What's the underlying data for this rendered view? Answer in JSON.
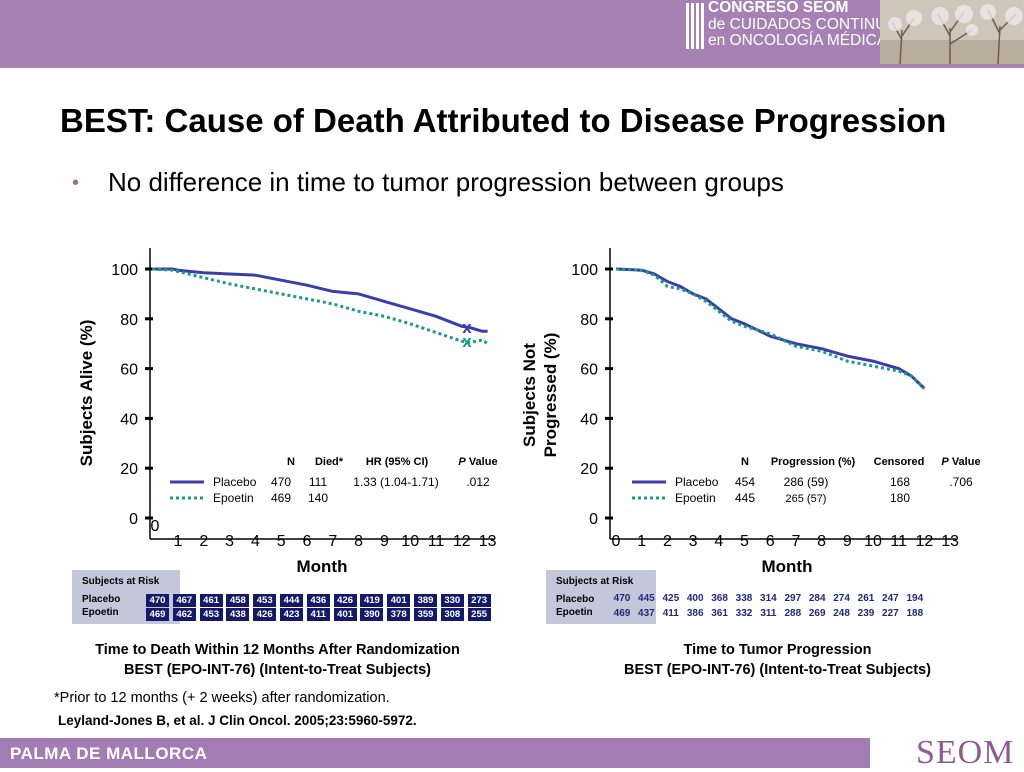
{
  "header": {
    "logo_lines": [
      "CONGRESO SEOM",
      "de CUIDADOS CONTINUOS",
      "en ONCOLOGÍA MÉDICA"
    ]
  },
  "slide": {
    "title": "BEST: Cause of Death Attributed to Disease Progression",
    "bullet": "No difference in time to tumor progression between groups",
    "footnote": "*Prior to 12 months (+ 2 weeks) after randomization.",
    "reference": "Leyland-Jones B, et al. J Clin Oncol. 2005;23:5960-5972."
  },
  "footer": {
    "left": "PALMA DE MALLORCA",
    "right": "SEOM"
  },
  "colors": {
    "placebo": "#3b3ea6",
    "epoetin": "#1b9a86",
    "banner": "#a681b4",
    "risk_box": "#c4c7da",
    "risk_cell": "#151969"
  },
  "chart_data": [
    {
      "type": "line",
      "ylabel": "Subjects Alive (%)",
      "xlabel": "Month",
      "ylim": [
        0,
        100
      ],
      "yticks": [
        "100",
        "80",
        "60",
        "40",
        "20",
        "0"
      ],
      "xticks": [
        "0",
        "1",
        "2",
        "3",
        "4",
        "5",
        "6",
        "7",
        "8",
        "9",
        "10",
        "11",
        "12",
        "13"
      ],
      "x_zero_label": "0",
      "legend_headers": [
        "N",
        "Died*",
        "HR (95% CI)",
        "P Value"
      ],
      "legend_rows": [
        {
          "name": "Placebo",
          "n": "470",
          "stat": "111",
          "hr": "1.33 (1.04-1.71)",
          "p": ".012"
        },
        {
          "name": "Epoetin",
          "n": "469",
          "stat": "140",
          "hr": "",
          "p": ""
        }
      ],
      "end_markers": [
        "x",
        "x"
      ],
      "series": [
        {
          "name": "Placebo",
          "x": [
            0,
            0.8,
            1,
            2,
            3,
            4,
            5,
            6,
            7,
            8,
            9,
            10,
            11,
            12,
            12.3,
            12.8,
            13
          ],
          "y": [
            100,
            100,
            99.5,
            98.5,
            98,
            97.5,
            95.5,
            93.5,
            91,
            90,
            87,
            84,
            81,
            77,
            76.5,
            75,
            75
          ]
        },
        {
          "name": "Epoetin",
          "x": [
            0,
            0.8,
            1,
            2,
            3,
            4,
            5,
            6,
            7,
            8,
            9,
            10,
            11,
            12,
            12.3,
            12.8,
            13
          ],
          "y": [
            100,
            99.5,
            99,
            96.5,
            94,
            92,
            90,
            88,
            86,
            83,
            81,
            78,
            74.5,
            71,
            70.5,
            71.5,
            70
          ]
        }
      ],
      "risk_table": {
        "title": "Subjects at Risk",
        "labels": [
          "Placebo",
          "Epoetin"
        ],
        "placebo": [
          "470",
          "467",
          "461",
          "458",
          "453",
          "444",
          "436",
          "426",
          "419",
          "401",
          "389",
          "330",
          "273"
        ],
        "epoetin": [
          "469",
          "462",
          "453",
          "438",
          "426",
          "423",
          "411",
          "401",
          "390",
          "378",
          "359",
          "308",
          "255"
        ]
      },
      "caption": [
        "Time to Death Within 12 Months After Randomization",
        "BEST (EPO-INT-76) (Intent-to-Treat Subjects)"
      ]
    },
    {
      "type": "line",
      "ylabel": "Subjects Not Progressed (%)",
      "ylabel_lines": [
        "Subjects Not",
        "Progressed (%)"
      ],
      "xlabel": "Month",
      "ylim": [
        0,
        100
      ],
      "yticks": [
        "100",
        "80",
        "60",
        "40",
        "20",
        "0"
      ],
      "xticks": [
        "0",
        "1",
        "2",
        "3",
        "4",
        "5",
        "6",
        "7",
        "8",
        "9",
        "10",
        "11",
        "12",
        "13"
      ],
      "legend_headers": [
        "N",
        "Progression (%)",
        "Censored",
        "P Value"
      ],
      "legend_rows": [
        {
          "name": "Placebo",
          "n": "454",
          "stat": "286 (59)",
          "censored": "168",
          "p": ".706"
        },
        {
          "name": "Epoetin",
          "n": "445",
          "stat": "265 (57)",
          "censored": "180",
          "p": ""
        }
      ],
      "series": [
        {
          "name": "Placebo",
          "x": [
            0,
            1,
            1.5,
            2,
            2.5,
            3,
            3.5,
            4,
            4.5,
            5,
            6,
            7,
            8,
            9,
            10,
            11,
            11.5,
            12
          ],
          "y": [
            100,
            99.5,
            98,
            95,
            93,
            90,
            88,
            84,
            80,
            78,
            73,
            70,
            68,
            65,
            63,
            60,
            57,
            52
          ]
        },
        {
          "name": "Epoetin",
          "x": [
            0,
            1,
            1.5,
            2,
            2.5,
            3,
            3.5,
            4,
            4.5,
            5,
            6,
            7,
            8,
            9,
            10,
            11,
            11.5,
            12
          ],
          "y": [
            100,
            99.5,
            97.5,
            93,
            92,
            90,
            87,
            83,
            79,
            77,
            74,
            69,
            67,
            63,
            61,
            59,
            57,
            52
          ]
        }
      ],
      "risk_table": {
        "title": "Subjects at Risk",
        "labels": [
          "Placebo",
          "Epoetin"
        ],
        "placebo": [
          "470",
          "445",
          "425",
          "400",
          "368",
          "338",
          "314",
          "297",
          "284",
          "274",
          "261",
          "247",
          "194"
        ],
        "epoetin": [
          "469",
          "437",
          "411",
          "386",
          "361",
          "332",
          "311",
          "288",
          "269",
          "248",
          "239",
          "227",
          "188"
        ]
      },
      "caption": [
        "Time to Tumor Progression",
        "BEST (EPO-INT-76) (Intent-to-Treat Subjects)"
      ]
    }
  ]
}
